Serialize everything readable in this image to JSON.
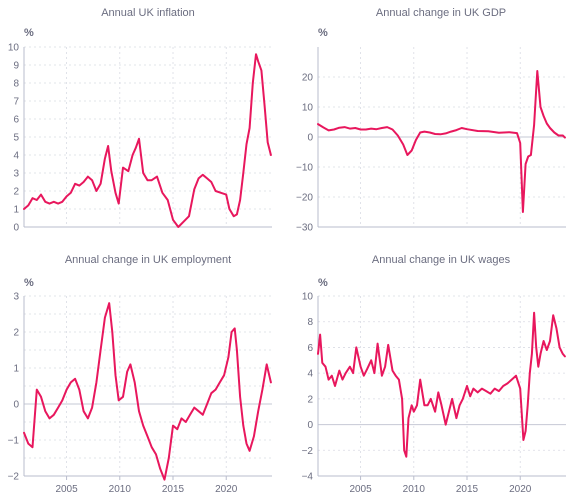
{
  "chart_data": [
    {
      "type": "line",
      "title": "Annual UK inflation",
      "unit": "%",
      "ylim": [
        0,
        10
      ],
      "yticks": [
        0,
        1,
        2,
        3,
        4,
        5,
        6,
        7,
        8,
        9,
        10
      ],
      "xlim": [
        2001,
        2024.3
      ],
      "xticks": [],
      "color": "#e8175d",
      "series": [
        {
          "x": [
            2001.0,
            2001.4,
            2001.8,
            2002.2,
            2002.6,
            2003.0,
            2003.4,
            2003.8,
            2004.2,
            2004.6,
            2005.0,
            2005.4,
            2005.8,
            2006.2,
            2006.6,
            2007.0,
            2007.4,
            2007.8,
            2008.2,
            2008.6,
            2008.9,
            2009.2,
            2009.6,
            2009.9,
            2010.3,
            2010.8,
            2011.2,
            2011.5,
            2011.8,
            2012.2,
            2012.6,
            2013.0,
            2013.5,
            2014.0,
            2014.5,
            2015.0,
            2015.5,
            2016.0,
            2016.5,
            2017.0,
            2017.4,
            2017.8,
            2018.2,
            2018.6,
            2019.0,
            2019.5,
            2020.0,
            2020.3,
            2020.7,
            2021.0,
            2021.3,
            2021.6,
            2021.9,
            2022.2,
            2022.5,
            2022.8,
            2023.0,
            2023.3,
            2023.6,
            2023.9,
            2024.2
          ],
          "values": [
            1.0,
            1.2,
            1.6,
            1.5,
            1.8,
            1.4,
            1.3,
            1.4,
            1.3,
            1.4,
            1.7,
            1.9,
            2.4,
            2.3,
            2.5,
            2.8,
            2.6,
            2.0,
            2.4,
            3.8,
            4.5,
            3.1,
            1.9,
            1.3,
            3.3,
            3.1,
            4.0,
            4.4,
            4.9,
            3.0,
            2.6,
            2.6,
            2.8,
            1.9,
            1.5,
            0.4,
            0.0,
            0.3,
            0.6,
            2.1,
            2.7,
            2.9,
            2.7,
            2.5,
            2.0,
            1.9,
            1.8,
            1.0,
            0.6,
            0.7,
            1.5,
            3.0,
            4.6,
            5.5,
            8.0,
            9.6,
            9.2,
            8.7,
            6.8,
            4.7,
            4.0
          ]
        }
      ]
    },
    {
      "type": "line",
      "title": "Annual change in UK GDP",
      "unit": "%",
      "ylim": [
        -30,
        30
      ],
      "yticks": [
        -30,
        -20,
        -10,
        0,
        10,
        20
      ],
      "xlim": [
        2001,
        2024.3
      ],
      "xticks": [],
      "color": "#e8175d",
      "series": [
        {
          "x": [
            2001.0,
            2001.5,
            2002.0,
            2002.5,
            2003.0,
            2003.5,
            2004.0,
            2004.5,
            2005.0,
            2005.5,
            2006.0,
            2006.5,
            2007.0,
            2007.5,
            2008.0,
            2008.5,
            2009.0,
            2009.4,
            2009.8,
            2010.2,
            2010.6,
            2011.0,
            2011.5,
            2012.0,
            2012.5,
            2013.0,
            2013.5,
            2014.0,
            2014.5,
            2015.0,
            2016.0,
            2017.0,
            2018.0,
            2019.0,
            2019.7,
            2020.0,
            2020.25,
            2020.5,
            2020.75,
            2021.0,
            2021.3,
            2021.6,
            2021.9,
            2022.2,
            2022.5,
            2022.8,
            2023.2,
            2023.6,
            2024.0,
            2024.2
          ],
          "values": [
            4.3,
            3.2,
            2.2,
            2.5,
            3.1,
            3.3,
            2.8,
            3.0,
            2.5,
            2.5,
            2.8,
            2.6,
            3.0,
            3.3,
            2.5,
            0.5,
            -2.5,
            -6.0,
            -4.5,
            -1.0,
            1.5,
            1.8,
            1.5,
            1.0,
            0.9,
            1.2,
            1.8,
            2.3,
            3.0,
            2.6,
            2.0,
            1.9,
            1.4,
            1.6,
            1.3,
            -2.0,
            -25.0,
            -9.0,
            -6.5,
            -6.0,
            4.0,
            22.0,
            10.0,
            7.0,
            4.5,
            3.0,
            1.5,
            0.5,
            0.5,
            -0.2
          ]
        }
      ]
    },
    {
      "type": "line",
      "title": "Annual change in UK employment",
      "unit": "%",
      "ylim": [
        -2,
        3
      ],
      "yticks": [
        -2,
        -1.5,
        -1,
        -0.5,
        0,
        0.5,
        1,
        1.5,
        2,
        2.5,
        3
      ],
      "ytick_labels": [
        "−2",
        "",
        "−1",
        "",
        "0",
        "",
        "1",
        "",
        "2",
        "",
        "3"
      ],
      "xlim": [
        2001,
        2024.3
      ],
      "xticks": [
        2005,
        2010,
        2015,
        2020
      ],
      "color": "#e8175d",
      "series": [
        {
          "x": [
            2001.0,
            2001.4,
            2001.8,
            2002.2,
            2002.6,
            2003.0,
            2003.4,
            2003.8,
            2004.2,
            2004.6,
            2005.0,
            2005.4,
            2005.8,
            2006.2,
            2006.6,
            2007.0,
            2007.4,
            2007.8,
            2008.2,
            2008.6,
            2009.0,
            2009.3,
            2009.6,
            2009.9,
            2010.3,
            2010.7,
            2011.0,
            2011.4,
            2011.8,
            2012.2,
            2012.6,
            2013.0,
            2013.4,
            2013.8,
            2014.2,
            2014.6,
            2015.0,
            2015.4,
            2015.8,
            2016.2,
            2016.6,
            2017.0,
            2017.4,
            2017.8,
            2018.2,
            2018.6,
            2019.0,
            2019.4,
            2019.8,
            2020.2,
            2020.5,
            2020.8,
            2021.0,
            2021.3,
            2021.6,
            2021.9,
            2022.2,
            2022.6,
            2023.0,
            2023.4,
            2023.8,
            2024.2
          ],
          "values": [
            -0.8,
            -1.1,
            -1.2,
            0.4,
            0.2,
            -0.2,
            -0.4,
            -0.3,
            -0.1,
            0.1,
            0.4,
            0.6,
            0.7,
            0.4,
            -0.2,
            -0.4,
            -0.1,
            0.6,
            1.5,
            2.4,
            2.8,
            2.0,
            0.8,
            0.1,
            0.2,
            0.9,
            1.1,
            0.6,
            -0.2,
            -0.6,
            -0.9,
            -1.2,
            -1.4,
            -1.8,
            -2.1,
            -1.5,
            -0.6,
            -0.7,
            -0.4,
            -0.5,
            -0.3,
            -0.1,
            -0.2,
            -0.3,
            0.0,
            0.3,
            0.4,
            0.6,
            0.8,
            1.3,
            2.0,
            2.1,
            1.5,
            0.2,
            -0.6,
            -1.1,
            -1.3,
            -0.9,
            -0.2,
            0.4,
            1.1,
            0.6
          ]
        }
      ]
    },
    {
      "type": "line",
      "title": "Annual change in UK wages",
      "unit": "%",
      "ylim": [
        -4,
        10
      ],
      "yticks": [
        -4,
        -2,
        0,
        2,
        4,
        6,
        8,
        10
      ],
      "xlim": [
        2001,
        2024.3
      ],
      "xticks": [
        2005,
        2010,
        2015,
        2020
      ],
      "color": "#e8175d",
      "series": [
        {
          "x": [
            2001.0,
            2001.2,
            2001.4,
            2001.7,
            2002.0,
            2002.3,
            2002.6,
            2003.0,
            2003.3,
            2003.6,
            2004.0,
            2004.3,
            2004.6,
            2005.0,
            2005.3,
            2005.6,
            2006.0,
            2006.3,
            2006.6,
            2007.0,
            2007.3,
            2007.6,
            2008.0,
            2008.3,
            2008.6,
            2008.9,
            2009.1,
            2009.3,
            2009.5,
            2009.8,
            2010.0,
            2010.3,
            2010.6,
            2011.0,
            2011.3,
            2011.6,
            2012.0,
            2012.3,
            2012.6,
            2013.0,
            2013.3,
            2013.6,
            2014.0,
            2014.3,
            2014.6,
            2015.0,
            2015.3,
            2015.6,
            2016.0,
            2016.4,
            2016.8,
            2017.2,
            2017.6,
            2018.0,
            2018.4,
            2018.8,
            2019.2,
            2019.6,
            2020.0,
            2020.3,
            2020.5,
            2020.7,
            2020.9,
            2021.1,
            2021.3,
            2021.5,
            2021.7,
            2021.9,
            2022.2,
            2022.5,
            2022.8,
            2023.1,
            2023.4,
            2023.7,
            2024.0,
            2024.2
          ],
          "values": [
            5.5,
            7.0,
            4.8,
            4.5,
            3.5,
            3.8,
            3.0,
            4.2,
            3.5,
            4.0,
            4.5,
            4.0,
            6.0,
            4.5,
            3.8,
            4.3,
            5.0,
            4.0,
            6.3,
            3.8,
            4.5,
            6.2,
            4.2,
            3.8,
            3.5,
            2.0,
            -2.0,
            -2.5,
            0.5,
            1.5,
            1.0,
            1.5,
            3.5,
            1.5,
            1.5,
            2.0,
            1.0,
            2.5,
            1.5,
            0.0,
            1.0,
            2.0,
            0.5,
            1.5,
            2.0,
            3.0,
            2.2,
            2.8,
            2.5,
            2.8,
            2.6,
            2.4,
            2.8,
            2.6,
            3.0,
            3.2,
            3.5,
            3.8,
            2.8,
            -1.2,
            -0.5,
            1.5,
            4.0,
            5.5,
            8.7,
            6.0,
            4.5,
            5.5,
            6.5,
            5.8,
            6.5,
            8.5,
            7.5,
            6.0,
            5.5,
            5.3
          ]
        }
      ]
    }
  ]
}
